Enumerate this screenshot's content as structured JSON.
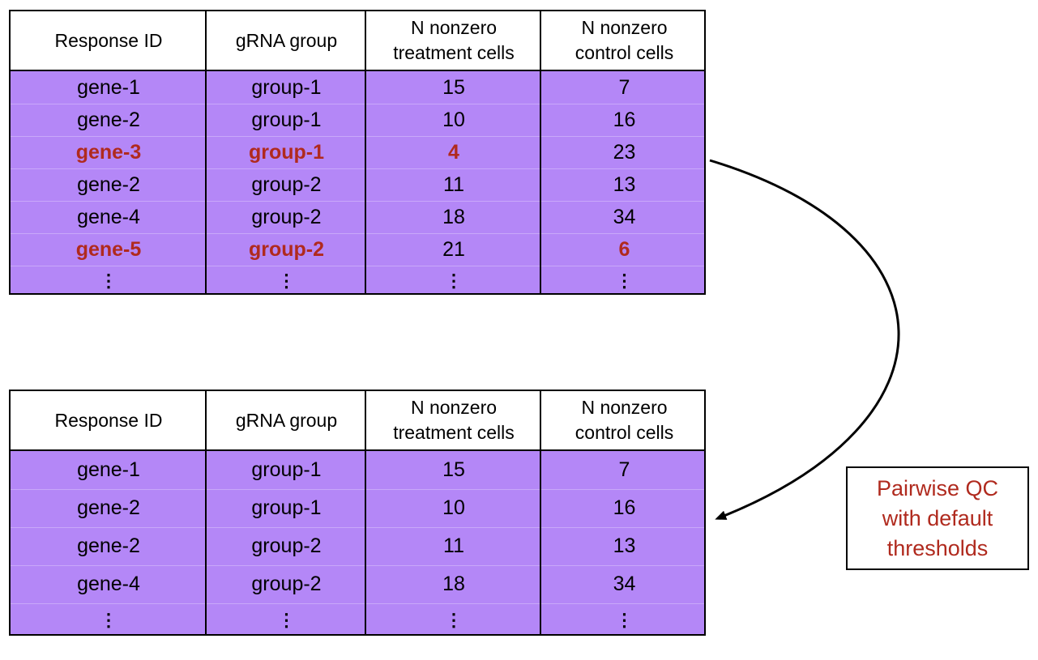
{
  "headers": [
    "Response ID",
    "gRNA group",
    "N nonzero\ntreatment cells",
    "N nonzero\ncontrol cells"
  ],
  "top_table": {
    "rows": [
      {
        "cells": [
          "gene-1",
          "group-1",
          "15",
          "7"
        ],
        "highlight": [
          false,
          false,
          false,
          false
        ]
      },
      {
        "cells": [
          "gene-2",
          "group-1",
          "10",
          "16"
        ],
        "highlight": [
          false,
          false,
          false,
          false
        ]
      },
      {
        "cells": [
          "gene-3",
          "group-1",
          "4",
          "23"
        ],
        "highlight": [
          true,
          true,
          true,
          false
        ]
      },
      {
        "cells": [
          "gene-2",
          "group-2",
          "11",
          "13"
        ],
        "highlight": [
          false,
          false,
          false,
          false
        ]
      },
      {
        "cells": [
          "gene-4",
          "group-2",
          "18",
          "34"
        ],
        "highlight": [
          false,
          false,
          false,
          false
        ]
      },
      {
        "cells": [
          "gene-5",
          "group-2",
          "21",
          "6"
        ],
        "highlight": [
          true,
          true,
          false,
          true
        ]
      }
    ],
    "ellipsis": [
      "⋮",
      "⋮",
      "⋮",
      "⋮"
    ]
  },
  "bottom_table": {
    "rows": [
      {
        "cells": [
          "gene-1",
          "group-1",
          "15",
          "7"
        ],
        "highlight": [
          false,
          false,
          false,
          false
        ]
      },
      {
        "cells": [
          "gene-2",
          "group-1",
          "10",
          "16"
        ],
        "highlight": [
          false,
          false,
          false,
          false
        ]
      },
      {
        "cells": [
          "gene-2",
          "group-2",
          "11",
          "13"
        ],
        "highlight": [
          false,
          false,
          false,
          false
        ]
      },
      {
        "cells": [
          "gene-4",
          "group-2",
          "18",
          "34"
        ],
        "highlight": [
          false,
          false,
          false,
          false
        ]
      }
    ],
    "ellipsis": [
      "⋮",
      "⋮",
      "⋮",
      "⋮"
    ]
  },
  "qc_label": "Pairwise QC\nwith default\nthresholds",
  "colors": {
    "row_background": "#b487f7",
    "highlight_text": "#b02a1e",
    "border": "#000000"
  }
}
